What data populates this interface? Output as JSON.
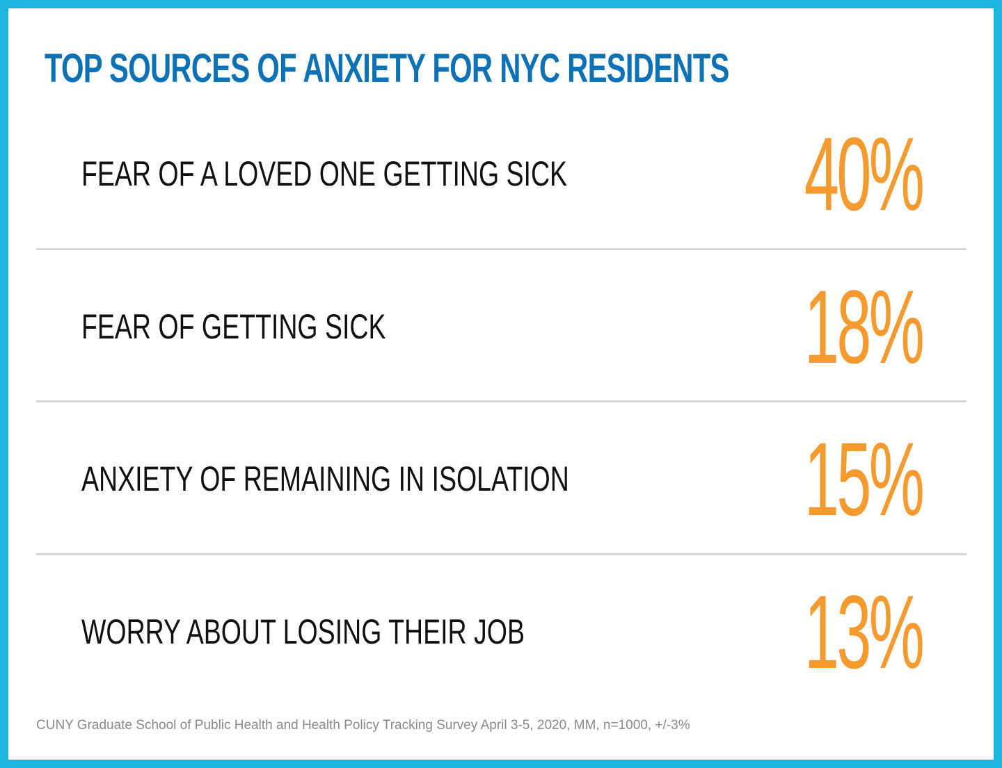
{
  "title": "TOP SOURCES OF ANXIETY FOR NYC RESIDENTS",
  "items": [
    {
      "label": "FEAR OF A LOVED ONE GETTING SICK",
      "value": "40%"
    },
    {
      "label": "FEAR OF GETTING SICK",
      "value": "18%"
    },
    {
      "label": "ANXIETY OF REMAINING IN ISOLATION",
      "value": "15%"
    },
    {
      "label": "WORRY ABOUT LOSING THEIR JOB",
      "value": "13%"
    }
  ],
  "footnote": "CUNY Graduate School of Public Health and Health Policy Tracking Survey April 3-5, 2020, MM, n=1000, +/-3%",
  "colors": {
    "border": "#1fb4e0",
    "title": "#0d72b5",
    "value": "#f59a2e",
    "label": "#111111",
    "divider": "#d6d6d6",
    "footnote": "#8a8a8a"
  }
}
